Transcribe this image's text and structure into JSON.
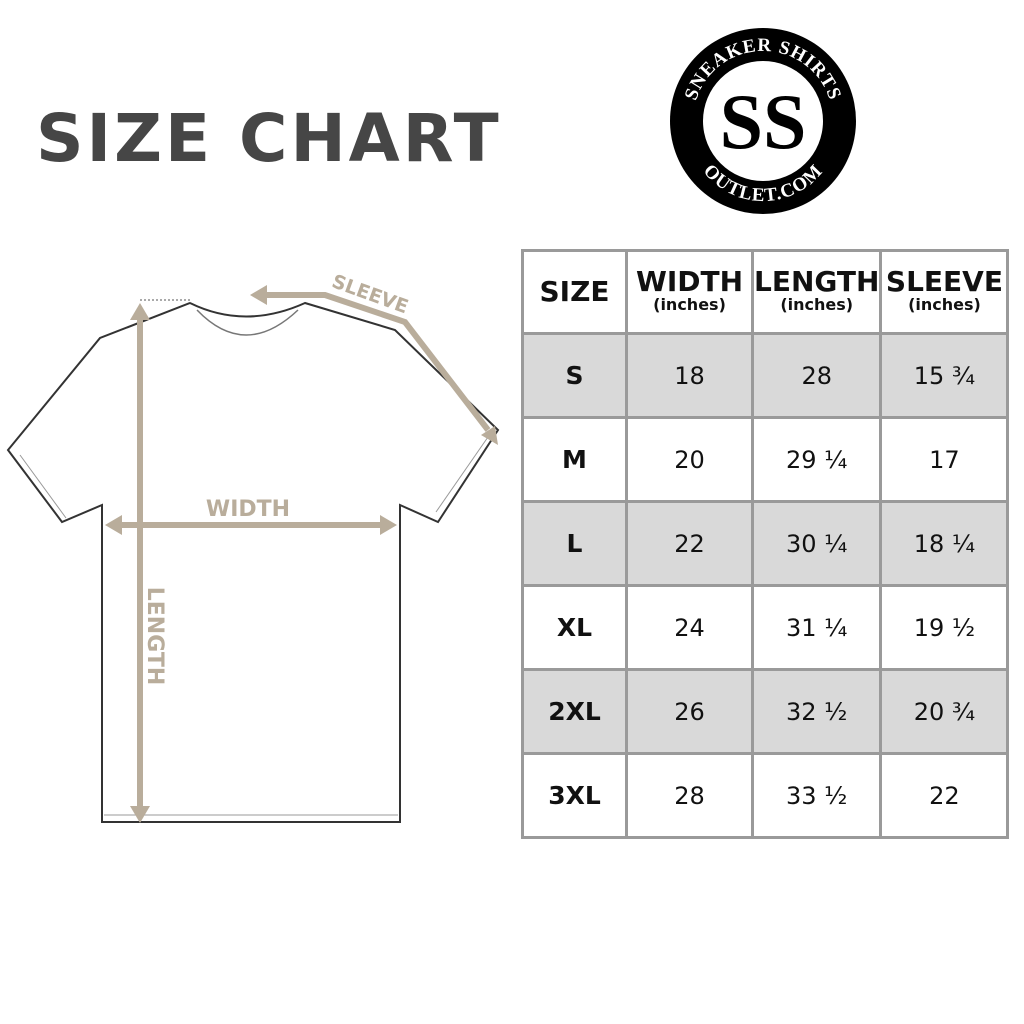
{
  "title": "SIZE CHART",
  "logo": {
    "top_text": "SNEAKER SHIRTS",
    "bottom_text": "OUTLET.COM",
    "monogram": "SS"
  },
  "diagram": {
    "width_label": "WIDTH",
    "length_label": "LENGTH",
    "sleeve_label": "SLEEVE",
    "arrow_color": "#b9ad9b"
  },
  "table": {
    "headers": [
      {
        "label": "SIZE",
        "unit": ""
      },
      {
        "label": "WIDTH",
        "unit": "(inches)"
      },
      {
        "label": "LENGTH",
        "unit": "(inches)"
      },
      {
        "label": "SLEEVE",
        "unit": "(inches)"
      }
    ],
    "rows": [
      [
        "S",
        "18",
        "28",
        "15 ¾"
      ],
      [
        "M",
        "20",
        "29 ¼",
        "17"
      ],
      [
        "L",
        "22",
        "30 ¼",
        "18 ¼"
      ],
      [
        "XL",
        "24",
        "31 ¼",
        "19 ½"
      ],
      [
        "2XL",
        "26",
        "32 ½",
        "20 ¾"
      ],
      [
        "3XL",
        "28",
        "33 ½",
        "22"
      ]
    ],
    "shade_color": "#d9d9d9"
  }
}
